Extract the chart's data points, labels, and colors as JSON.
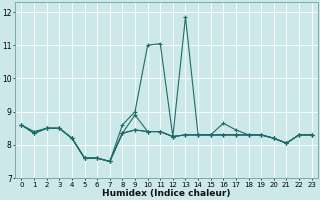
{
  "title": "",
  "xlabel": "Humidex (Indice chaleur)",
  "xlim": [
    -0.5,
    23.5
  ],
  "ylim": [
    7.0,
    12.3
  ],
  "yticks": [
    7,
    8,
    9,
    10,
    11,
    12
  ],
  "xticks": [
    0,
    1,
    2,
    3,
    4,
    5,
    6,
    7,
    8,
    9,
    10,
    11,
    12,
    13,
    14,
    15,
    16,
    17,
    18,
    19,
    20,
    21,
    22,
    23
  ],
  "bg_color": "#cde8e8",
  "line_color": "#1e6b6b",
  "grid_color": "#b0d0d0",
  "lines": [
    [
      8.6,
      8.4,
      8.5,
      8.5,
      8.2,
      7.6,
      7.6,
      7.5,
      8.6,
      9.0,
      11.0,
      11.05,
      8.25,
      11.85,
      8.3,
      8.3,
      8.65,
      8.45,
      8.3,
      8.3,
      8.2,
      8.05,
      8.3,
      8.3
    ],
    [
      8.6,
      8.35,
      8.5,
      8.5,
      8.2,
      7.6,
      7.6,
      7.5,
      8.35,
      8.9,
      8.4,
      8.4,
      8.25,
      8.3,
      8.3,
      8.3,
      8.3,
      8.3,
      8.3,
      8.3,
      8.2,
      8.05,
      8.3,
      8.3
    ],
    [
      8.6,
      8.35,
      8.5,
      8.5,
      8.2,
      7.6,
      7.6,
      7.5,
      8.35,
      8.45,
      8.4,
      8.4,
      8.25,
      8.3,
      8.3,
      8.3,
      8.3,
      8.3,
      8.3,
      8.3,
      8.2,
      8.05,
      8.3,
      8.3
    ],
    [
      8.6,
      8.35,
      8.5,
      8.5,
      8.2,
      7.6,
      7.6,
      7.5,
      8.35,
      8.45,
      8.4,
      8.4,
      8.25,
      8.3,
      8.3,
      8.3,
      8.3,
      8.3,
      8.3,
      8.3,
      8.2,
      8.05,
      8.3,
      8.3
    ]
  ]
}
